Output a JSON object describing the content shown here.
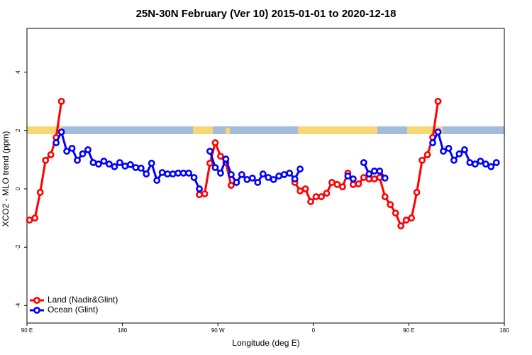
{
  "chart_data": {
    "type": "line",
    "title": "25N-30N February (Ver 10)   2015-01-01 to 2020-12-18",
    "x_label": "Longitude (deg E)",
    "y_label": "XCO2 - MLO trend (ppm)",
    "xlim": [
      90,
      540
    ],
    "ylim": [
      -4.6,
      5.5
    ],
    "xticks": [
      {
        "value": 90,
        "label": "90 E"
      },
      180,
      {
        "value": 270,
        "label": "90 W"
      },
      {
        "value": 360,
        "label": "0"
      },
      {
        "value": 450,
        "label": "90 E"
      },
      {
        "value": 540,
        "label": "180"
      }
    ],
    "yticks": [
      -4,
      -2,
      0,
      2,
      4
    ],
    "legend": "bottom-left",
    "series": [
      {
        "name": "Land (Nadir&Glint)",
        "color": "#ff0000",
        "x": [
          92.5,
          97.5,
          102.5,
          107.5,
          112.5,
          117.5,
          122.5,
          null,
          252.5,
          257.5,
          262.5,
          267.5,
          272.5,
          277.5,
          282.5,
          null,
          342.5,
          347.5,
          352.5,
          357.5,
          362.5,
          367.5,
          372.5,
          377.5,
          382.5,
          387.5,
          392.5,
          397.5,
          402.5,
          407.5,
          412.5,
          417.5,
          422.5,
          427.5,
          432.5,
          437.5,
          442.5,
          447.5,
          452.5,
          457.5,
          462.5,
          467.5,
          472.5,
          477.5
        ],
        "values": [
          -1.07,
          -1.0,
          -0.12,
          0.98,
          1.17,
          1.76,
          3.0,
          null,
          -0.2,
          -0.17,
          0.88,
          1.58,
          1.12,
          0.9,
          0.12,
          null,
          0.22,
          -0.07,
          0,
          -0.44,
          -0.27,
          -0.27,
          -0.15,
          0.22,
          0.15,
          0.07,
          0.54,
          0.15,
          0.17,
          0.39,
          0.34,
          0.34,
          0.39,
          -0.27,
          -0.54,
          -0.83,
          -1.27,
          -1.07,
          -1.0,
          -0.12,
          0.98,
          1.17,
          1.76,
          3.0
        ]
      },
      {
        "name": "Ocean (Glint)",
        "color": "#0000ff",
        "x": [
          117.5,
          122.5,
          127.5,
          132.5,
          137.5,
          142.5,
          147.5,
          152.5,
          157.5,
          162.5,
          167.5,
          172.5,
          177.5,
          182.5,
          187.5,
          192.5,
          197.5,
          202.5,
          207.5,
          212.5,
          217.5,
          222.5,
          227.5,
          232.5,
          237.5,
          242.5,
          247.5,
          252.5,
          null,
          262.5,
          267.5,
          272.5,
          277.5,
          282.5,
          287.5,
          292.5,
          297.5,
          302.5,
          307.5,
          312.5,
          317.5,
          322.5,
          327.5,
          332.5,
          337.5,
          342.5,
          347.5,
          null,
          392.5,
          397.5,
          null,
          407.5,
          412.5,
          417.5,
          422.5,
          427.5,
          null,
          472.5,
          477.5,
          482.5,
          487.5,
          492.5,
          497.5,
          502.5,
          507.5,
          512.5,
          517.5,
          522.5,
          527.5,
          532.5
        ],
        "values": [
          1.58,
          1.95,
          1.29,
          1.39,
          0.98,
          1.2,
          1.34,
          0.9,
          0.85,
          0.95,
          0.85,
          0.76,
          0.9,
          0.78,
          0.83,
          0.73,
          0.71,
          0.51,
          0.88,
          0.29,
          0.56,
          0.51,
          0.51,
          0.54,
          0.54,
          0.54,
          0.39,
          0,
          null,
          1.29,
          0.73,
          0.54,
          1.02,
          0.49,
          0.22,
          0.49,
          0.32,
          0.37,
          0.22,
          0.51,
          0.39,
          0.32,
          0.44,
          0.49,
          0.54,
          0.34,
          0.68,
          null,
          0.44,
          0.34,
          null,
          0.9,
          0.51,
          0.61,
          0.61,
          0.37,
          null,
          1.58,
          1.95,
          1.29,
          1.39,
          0.98,
          1.2,
          1.34,
          0.9,
          0.85,
          0.95,
          0.85,
          0.76,
          0.9
        ]
      }
    ]
  }
}
